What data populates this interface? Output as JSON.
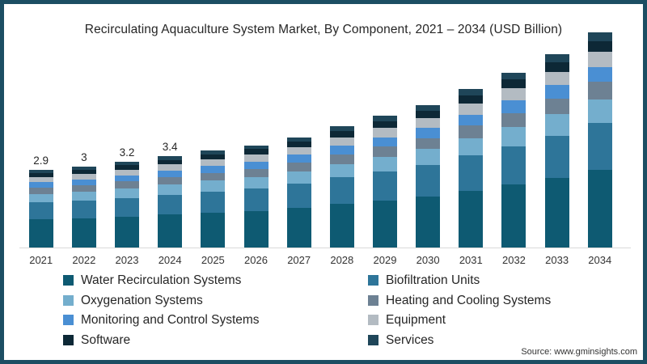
{
  "frame": {
    "border_color": "#1c4e63",
    "background": "#ffffff"
  },
  "title": "Recirculating Aquaculture System Market, By Component, 2021 – 2034 (USD Billion)",
  "source": "Source: www.gminsights.com",
  "chart_data": {
    "type": "bar",
    "stacked": true,
    "title": "Recirculating Aquaculture System Market, By Component, 2021 – 2034 (USD Billion)",
    "xlabel": "",
    "ylabel": "USD Billion",
    "ylim": [
      0,
      8.5
    ],
    "grid": false,
    "legend_position": "bottom",
    "categories": [
      "2021",
      "2022",
      "2023",
      "2024",
      "2025",
      "2026",
      "2027",
      "2028",
      "2029",
      "2030",
      "2031",
      "2032",
      "2033",
      "2034"
    ],
    "totals": [
      2.9,
      3.0,
      3.2,
      3.4,
      3.6,
      3.8,
      4.1,
      4.5,
      4.9,
      5.3,
      5.9,
      6.5,
      7.2,
      8.0
    ],
    "data_labels": [
      "2.9",
      "3",
      "3.2",
      "3.4",
      "",
      "",
      "",
      "",
      "",
      "",
      "",
      "",
      "",
      ""
    ],
    "series": [
      {
        "name": "Water Recirculation Systems",
        "color": "#0e5a72",
        "values": [
          1.04,
          1.08,
          1.15,
          1.22,
          1.3,
          1.37,
          1.48,
          1.62,
          1.76,
          1.91,
          2.12,
          2.34,
          2.59,
          2.88
        ]
      },
      {
        "name": "Biofiltration Units",
        "color": "#2e7599",
        "values": [
          0.64,
          0.66,
          0.7,
          0.75,
          0.79,
          0.84,
          0.9,
          0.99,
          1.08,
          1.17,
          1.3,
          1.43,
          1.58,
          1.76
        ]
      },
      {
        "name": "Oxygenation Systems",
        "color": "#74aecd",
        "values": [
          0.32,
          0.33,
          0.35,
          0.37,
          0.4,
          0.42,
          0.45,
          0.5,
          0.54,
          0.58,
          0.65,
          0.72,
          0.79,
          0.88
        ]
      },
      {
        "name": "Heating and Cooling Systems",
        "color": "#6d8193",
        "values": [
          0.23,
          0.24,
          0.26,
          0.27,
          0.29,
          0.3,
          0.33,
          0.36,
          0.39,
          0.42,
          0.47,
          0.52,
          0.58,
          0.64
        ]
      },
      {
        "name": "Monitoring and Control Systems",
        "color": "#4a8fd3",
        "values": [
          0.2,
          0.21,
          0.22,
          0.24,
          0.25,
          0.27,
          0.29,
          0.32,
          0.34,
          0.37,
          0.41,
          0.46,
          0.5,
          0.56
        ]
      },
      {
        "name": "Equipment",
        "color": "#b3bbc2",
        "values": [
          0.2,
          0.21,
          0.22,
          0.24,
          0.25,
          0.27,
          0.29,
          0.32,
          0.34,
          0.37,
          0.41,
          0.46,
          0.5,
          0.56
        ]
      },
      {
        "name": "Software",
        "color": "#0d2836",
        "values": [
          0.15,
          0.15,
          0.16,
          0.17,
          0.18,
          0.19,
          0.21,
          0.23,
          0.25,
          0.27,
          0.3,
          0.33,
          0.36,
          0.4
        ]
      },
      {
        "name": "Services",
        "color": "#1f4659",
        "values": [
          0.12,
          0.12,
          0.13,
          0.14,
          0.14,
          0.15,
          0.16,
          0.18,
          0.2,
          0.21,
          0.24,
          0.26,
          0.29,
          0.32
        ]
      }
    ]
  }
}
